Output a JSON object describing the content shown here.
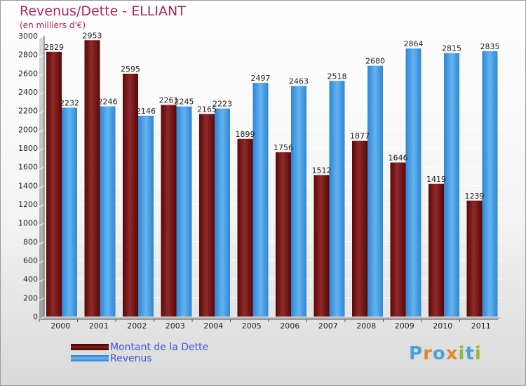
{
  "header": {
    "title": "Revenus/Dette - ELLIANT",
    "subtitle": "(en milliers d'€)"
  },
  "legend": [
    {
      "label": "Montant de la Dette",
      "color": "#6b0a0a"
    },
    {
      "label": "Revenus",
      "color": "#3a8fe0"
    }
  ],
  "brand": {
    "letters": [
      "P",
      "r",
      "o",
      "x",
      "i",
      "t",
      "i"
    ],
    "colors": [
      "#4aa3d8",
      "#e3872a",
      "#4aa3d8",
      "#e3872a",
      "#8dbb3c",
      "#4aa3d8",
      "#8dbb3c"
    ]
  },
  "colors": {
    "debt": "#7a1a1a",
    "revenue": "#3a8fe0",
    "title": "#b0235a"
  },
  "chart_data": {
    "type": "bar",
    "categories": [
      "2000",
      "2001",
      "2002",
      "2003",
      "2004",
      "2005",
      "2006",
      "2007",
      "2008",
      "2009",
      "2010",
      "2011"
    ],
    "series": [
      {
        "name": "Montant de la Dette",
        "values": [
          2829,
          2953,
          2595,
          2261,
          2165,
          1899,
          1756,
          1512,
          1877,
          1646,
          1419,
          1239
        ]
      },
      {
        "name": "Revenus",
        "values": [
          2232,
          2246,
          2146,
          2245,
          2223,
          2497,
          2463,
          2518,
          2680,
          2864,
          2815,
          2835
        ]
      }
    ],
    "yticks": [
      0,
      200,
      400,
      600,
      800,
      1000,
      1200,
      1400,
      1600,
      1800,
      2000,
      2200,
      2400,
      2600,
      2800,
      3000
    ],
    "ylim": [
      0,
      3000
    ],
    "grid": true,
    "legend_position": "bottom-left"
  }
}
